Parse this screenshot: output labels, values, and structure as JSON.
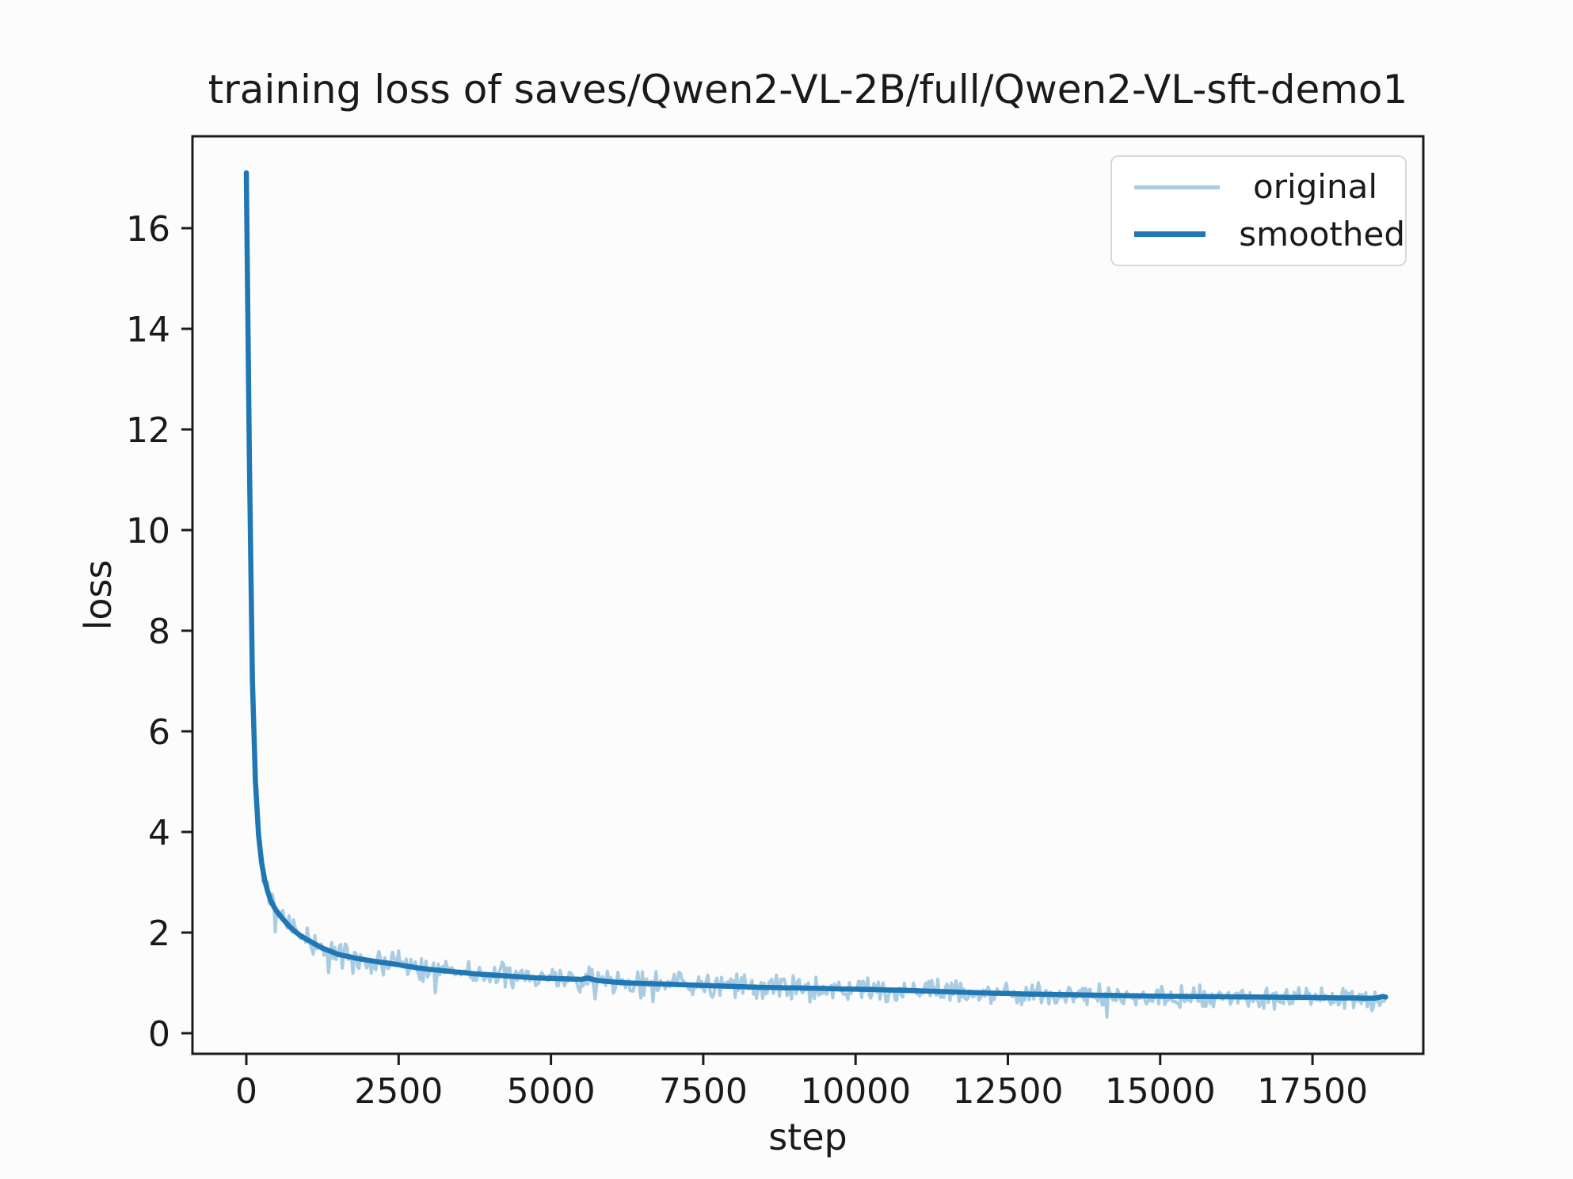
{
  "chart": {
    "title": "training loss of saves/Qwen2-VL-2B/full/Qwen2-VL-sft-demo1",
    "xlabel": "step",
    "ylabel": "loss"
  },
  "legend": {
    "position": "upper right",
    "items": [
      {
        "label": "original",
        "color": "#a9cce3"
      },
      {
        "label": "smoothed",
        "color": "#1f77b4"
      }
    ]
  },
  "colors": {
    "background": "#fbfcfb",
    "spine": "#1b1b1b",
    "text": "#1a1a1a",
    "original_line": "#a9cce3",
    "smoothed_line": "#1f77b4",
    "legend_border": "#d8d8d8"
  },
  "chart_data": {
    "type": "line",
    "title": "training loss of saves/Qwen2-VL-2B/full/Qwen2-VL-sft-demo1",
    "xlabel": "step",
    "ylabel": "loss",
    "xlim": [
      -900,
      19350
    ],
    "ylim": [
      -0.5,
      17.7
    ],
    "x_ticks": [
      0,
      2500,
      5000,
      7500,
      10000,
      12500,
      15000,
      17500
    ],
    "y_ticks": [
      0,
      2,
      4,
      6,
      8,
      10,
      12,
      14,
      16
    ],
    "grid": false,
    "legend_position": "upper right",
    "x_max_data": 18700,
    "series": [
      {
        "name": "original",
        "color": "#a9cce3",
        "derivation": "smoothed curve plus high-frequency noise band",
        "noise_amplitude_typical": 0.25,
        "noise_seed": 42,
        "sample_step": 25
      },
      {
        "name": "smoothed",
        "color": "#1f77b4",
        "points": [
          [
            0,
            17.1
          ],
          [
            25,
            14.5
          ],
          [
            50,
            11.5
          ],
          [
            75,
            9.0
          ],
          [
            100,
            7.0
          ],
          [
            130,
            5.6
          ],
          [
            160,
            4.7
          ],
          [
            200,
            3.95
          ],
          [
            250,
            3.4
          ],
          [
            300,
            3.05
          ],
          [
            350,
            2.82
          ],
          [
            400,
            2.64
          ],
          [
            450,
            2.52
          ],
          [
            500,
            2.42
          ],
          [
            600,
            2.27
          ],
          [
            700,
            2.13
          ],
          [
            800,
            2.02
          ],
          [
            900,
            1.93
          ],
          [
            1000,
            1.86
          ],
          [
            1100,
            1.79
          ],
          [
            1250,
            1.69
          ],
          [
            1400,
            1.62
          ],
          [
            1500,
            1.57
          ],
          [
            1650,
            1.53
          ],
          [
            1800,
            1.49
          ],
          [
            2000,
            1.45
          ],
          [
            2200,
            1.41
          ],
          [
            2400,
            1.38
          ],
          [
            2600,
            1.34
          ],
          [
            2800,
            1.3
          ],
          [
            3000,
            1.27
          ],
          [
            3250,
            1.24
          ],
          [
            3500,
            1.21
          ],
          [
            3750,
            1.18
          ],
          [
            4000,
            1.16
          ],
          [
            4250,
            1.14
          ],
          [
            4500,
            1.12
          ],
          [
            4750,
            1.1
          ],
          [
            5000,
            1.09
          ],
          [
            5250,
            1.08
          ],
          [
            5500,
            1.07
          ],
          [
            5600,
            1.1
          ],
          [
            5750,
            1.05
          ],
          [
            6000,
            1.02
          ],
          [
            6250,
            1.0
          ],
          [
            6500,
            0.99
          ],
          [
            6750,
            0.98
          ],
          [
            7000,
            0.97
          ],
          [
            7250,
            0.96
          ],
          [
            7500,
            0.95
          ],
          [
            7750,
            0.94
          ],
          [
            8000,
            0.93
          ],
          [
            8250,
            0.92
          ],
          [
            8500,
            0.91
          ],
          [
            8750,
            0.905
          ],
          [
            9000,
            0.9
          ],
          [
            9250,
            0.895
          ],
          [
            9500,
            0.89
          ],
          [
            9750,
            0.88
          ],
          [
            10000,
            0.875
          ],
          [
            10250,
            0.87
          ],
          [
            10500,
            0.86
          ],
          [
            10750,
            0.855
          ],
          [
            11000,
            0.845
          ],
          [
            11250,
            0.835
          ],
          [
            11500,
            0.825
          ],
          [
            11750,
            0.815
          ],
          [
            12000,
            0.805
          ],
          [
            12250,
            0.795
          ],
          [
            12500,
            0.79
          ],
          [
            12750,
            0.78
          ],
          [
            13000,
            0.775
          ],
          [
            13250,
            0.77
          ],
          [
            13500,
            0.765
          ],
          [
            13750,
            0.76
          ],
          [
            14000,
            0.755
          ],
          [
            14250,
            0.75
          ],
          [
            14500,
            0.745
          ],
          [
            14750,
            0.74
          ],
          [
            15000,
            0.735
          ],
          [
            15500,
            0.73
          ],
          [
            16000,
            0.725
          ],
          [
            16500,
            0.72
          ],
          [
            17000,
            0.715
          ],
          [
            17250,
            0.71
          ],
          [
            17500,
            0.71
          ],
          [
            17750,
            0.705
          ],
          [
            18000,
            0.7
          ],
          [
            18250,
            0.7
          ],
          [
            18400,
            0.695
          ],
          [
            18550,
            0.7
          ],
          [
            18650,
            0.73
          ],
          [
            18700,
            0.72
          ]
        ]
      }
    ]
  }
}
